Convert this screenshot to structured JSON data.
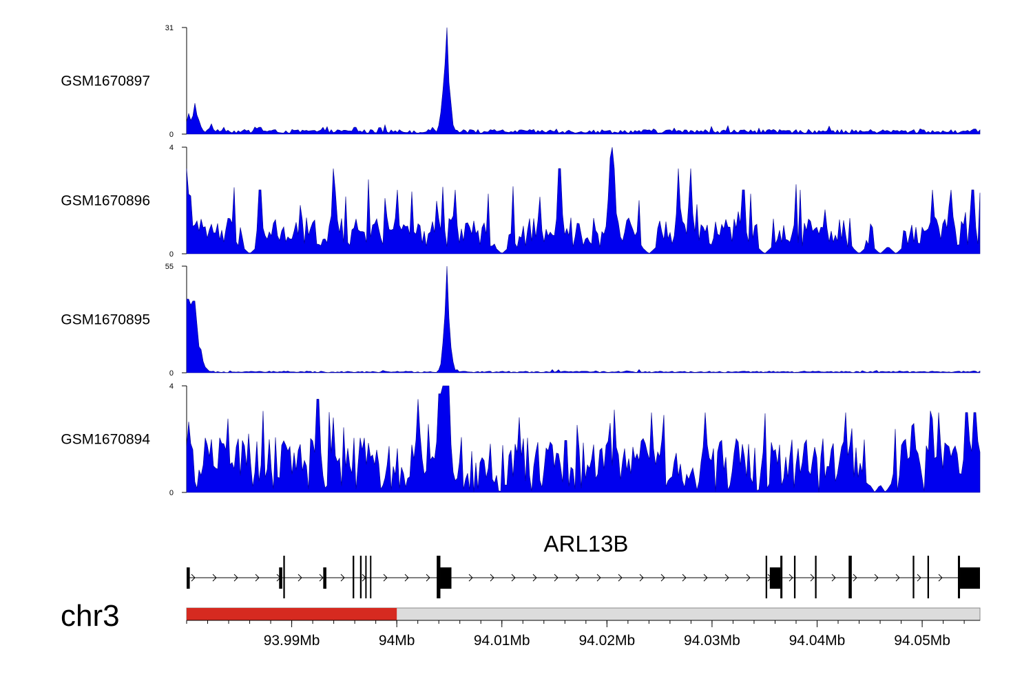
{
  "colors": {
    "signal": "#0000ee",
    "signal_stroke": "#00008b",
    "ideogram_highlight": "#d62a20",
    "ideogram_bg": "#dcdcdc",
    "gene": "#000000"
  },
  "chart_data": {
    "type": "area",
    "title": "",
    "xlabel": "",
    "ylabel": "",
    "xlim": [
      93980000,
      94055500
    ],
    "grid": false,
    "legend": "none",
    "x_ticks": [
      {
        "value": 93990000,
        "label": "93.99Mb"
      },
      {
        "value": 94000000,
        "label": "94Mb"
      },
      {
        "value": 94010000,
        "label": "94.01Mb"
      },
      {
        "value": 94020000,
        "label": "94.02Mb"
      },
      {
        "value": 94030000,
        "label": "94.03Mb"
      },
      {
        "value": 94040000,
        "label": "94.04Mb"
      },
      {
        "value": 94050000,
        "label": "94.05Mb"
      }
    ],
    "tracks": [
      {
        "name": "GSM1670897",
        "ylim": [
          0,
          31
        ],
        "ytick_labels": [
          "0",
          "31"
        ],
        "peaks": [
          {
            "x": 93980200,
            "y": 6
          },
          {
            "x": 93980500,
            "y": 4
          },
          {
            "x": 93980800,
            "y": 9
          },
          {
            "x": 93981200,
            "y": 4
          },
          {
            "x": 93982300,
            "y": 3
          },
          {
            "x": 93983500,
            "y": 2
          },
          {
            "x": 93987000,
            "y": 2
          },
          {
            "x": 93993000,
            "y": 2
          },
          {
            "x": 93996000,
            "y": 2
          },
          {
            "x": 94003400,
            "y": 2
          },
          {
            "x": 94004400,
            "y": 10
          },
          {
            "x": 94004600,
            "y": 20
          },
          {
            "x": 94004750,
            "y": 31
          },
          {
            "x": 94004900,
            "y": 15
          },
          {
            "x": 94005200,
            "y": 5
          },
          {
            "x": 94009000,
            "y": 1
          },
          {
            "x": 94029000,
            "y": 1
          },
          {
            "x": 94052000,
            "y": 1
          },
          {
            "x": 94055000,
            "y": 1.5
          }
        ],
        "baseline": 0.8
      },
      {
        "name": "GSM1670896",
        "ylim": [
          0,
          4
        ],
        "ytick_labels": [
          "0",
          "4"
        ],
        "peaks": [
          {
            "x": 93980050,
            "y": 3.2
          },
          {
            "x": 93987000,
            "y": 2.4
          },
          {
            "x": 93994000,
            "y": 3.2
          },
          {
            "x": 94000000,
            "y": 2.4
          },
          {
            "x": 94005500,
            "y": 2.4
          },
          {
            "x": 94015500,
            "y": 3.2
          },
          {
            "x": 94020300,
            "y": 3.6
          },
          {
            "x": 94020500,
            "y": 4
          },
          {
            "x": 94020700,
            "y": 3.2
          },
          {
            "x": 94026800,
            "y": 3.2
          },
          {
            "x": 94028000,
            "y": 3.2
          },
          {
            "x": 94033000,
            "y": 2.4
          },
          {
            "x": 94051000,
            "y": 2.4
          },
          {
            "x": 94052700,
            "y": 2.4
          },
          {
            "x": 94054800,
            "y": 2.4
          }
        ],
        "baseline": 0.8,
        "gaps": [
          93986000,
          94010000,
          94024000,
          94035000,
          94044000,
          94046000,
          94047500
        ]
      },
      {
        "name": "GSM1670895",
        "ylim": [
          0,
          55
        ],
        "ytick_labels": [
          "0",
          "55"
        ],
        "peaks": [
          {
            "x": 93980100,
            "y": 38
          },
          {
            "x": 93980400,
            "y": 35
          },
          {
            "x": 93980700,
            "y": 37
          },
          {
            "x": 93981000,
            "y": 25
          },
          {
            "x": 93981300,
            "y": 12
          },
          {
            "x": 93981600,
            "y": 5
          },
          {
            "x": 94004500,
            "y": 12
          },
          {
            "x": 94004650,
            "y": 30
          },
          {
            "x": 94004780,
            "y": 55
          },
          {
            "x": 94004900,
            "y": 28
          },
          {
            "x": 94005100,
            "y": 8
          }
        ],
        "baseline": 0.5
      },
      {
        "name": "GSM1670894",
        "ylim": [
          0,
          4
        ],
        "ytick_labels": [
          "0",
          "4"
        ],
        "peaks": [
          {
            "x": 93992500,
            "y": 3.5
          },
          {
            "x": 94002000,
            "y": 3.5
          },
          {
            "x": 94004100,
            "y": 3.7
          },
          {
            "x": 94004500,
            "y": 4
          },
          {
            "x": 94004900,
            "y": 4
          },
          {
            "x": 94024300,
            "y": 3
          },
          {
            "x": 94029300,
            "y": 3
          },
          {
            "x": 94042700,
            "y": 3
          },
          {
            "x": 94051600,
            "y": 3
          },
          {
            "x": 94054200,
            "y": 3
          },
          {
            "x": 94055000,
            "y": 3
          }
        ],
        "baseline": 1.3,
        "gaps": [
          94045500,
          94046500
        ]
      }
    ],
    "gene": {
      "name": "ARL13B",
      "strand": "+",
      "start": 93980000,
      "end": 94055500,
      "exons": [
        {
          "start": 93980000,
          "end": 93980300,
          "tall": false
        },
        {
          "start": 93988800,
          "end": 93989100,
          "tall": false
        },
        {
          "start": 93989200,
          "end": 93989350,
          "tall": true
        },
        {
          "start": 93993000,
          "end": 93993300,
          "tall": false
        },
        {
          "start": 93995800,
          "end": 93995950,
          "tall": true
        },
        {
          "start": 93996500,
          "end": 93996650,
          "tall": true
        },
        {
          "start": 93997000,
          "end": 93997100,
          "tall": true
        },
        {
          "start": 93997450,
          "end": 93997550,
          "tall": true
        },
        {
          "start": 94003800,
          "end": 94004150,
          "tall": true
        },
        {
          "start": 94004150,
          "end": 94005200,
          "tall": false
        },
        {
          "start": 94035100,
          "end": 94035250,
          "tall": true
        },
        {
          "start": 94035500,
          "end": 94036500,
          "tall": false
        },
        {
          "start": 94036500,
          "end": 94036700,
          "tall": true
        },
        {
          "start": 94037800,
          "end": 94037950,
          "tall": true
        },
        {
          "start": 94039800,
          "end": 94039950,
          "tall": true
        },
        {
          "start": 94043000,
          "end": 94043300,
          "tall": true
        },
        {
          "start": 94049100,
          "end": 94049250,
          "tall": true
        },
        {
          "start": 94050500,
          "end": 94050650,
          "tall": true
        },
        {
          "start": 94053400,
          "end": 94053600,
          "tall": true
        },
        {
          "start": 94053600,
          "end": 94055500,
          "tall": false
        }
      ]
    },
    "ideogram": {
      "chromosome": "chr3",
      "highlight_range": [
        93980000,
        94000000
      ]
    }
  }
}
